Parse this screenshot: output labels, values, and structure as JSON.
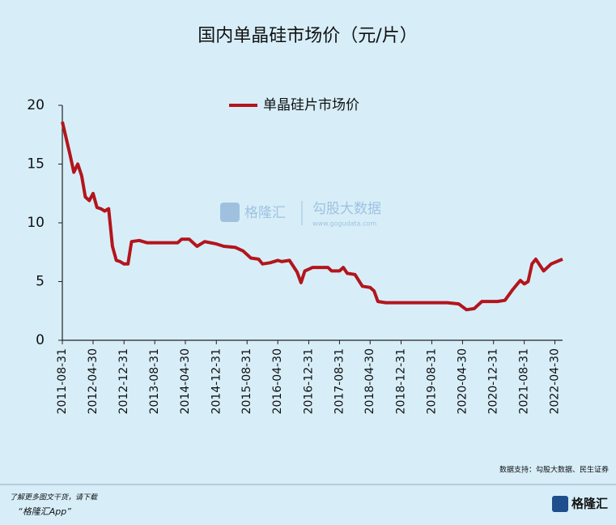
{
  "chart_data": {
    "type": "line",
    "title": "国内单晶硅市场价（元/片）",
    "x": [
      "2011-08-31",
      "2011-10-31",
      "2011-11-30",
      "2011-12-31",
      "2012-01-31",
      "2012-02-29",
      "2012-03-31",
      "2012-04-30",
      "2012-05-31",
      "2012-06-30",
      "2012-07-31",
      "2012-08-31",
      "2012-09-30",
      "2012-10-31",
      "2012-11-30",
      "2012-12-31",
      "2013-01-31",
      "2013-02-28",
      "2013-04-30",
      "2013-06-30",
      "2013-08-31",
      "2014-02-28",
      "2014-03-31",
      "2014-05-31",
      "2014-07-31",
      "2014-09-30",
      "2014-12-31",
      "2015-02-28",
      "2015-05-31",
      "2015-07-31",
      "2015-09-30",
      "2015-11-30",
      "2015-12-31",
      "2016-02-29",
      "2016-04-30",
      "2016-05-31",
      "2016-07-31",
      "2016-09-30",
      "2016-10-31",
      "2016-11-30",
      "2017-01-31",
      "2017-05-31",
      "2017-06-30",
      "2017-08-31",
      "2017-09-30",
      "2017-10-31",
      "2017-12-31",
      "2018-02-28",
      "2018-04-30",
      "2018-05-31",
      "2018-06-30",
      "2018-08-31",
      "2019-01-31",
      "2019-12-31",
      "2020-03-31",
      "2020-05-31",
      "2020-07-31",
      "2020-09-30",
      "2021-01-31",
      "2021-03-31",
      "2021-05-31",
      "2021-07-31",
      "2021-08-31",
      "2021-09-30",
      "2021-10-31",
      "2021-11-30",
      "2022-01-31",
      "2022-03-31",
      "2022-06-30"
    ],
    "series": [
      {
        "name": "单晶硅片市场价",
        "color": "#b3151c",
        "values": [
          18.6,
          15.8,
          14.3,
          15.0,
          14.0,
          12.2,
          11.9,
          12.5,
          11.3,
          11.2,
          11.0,
          11.2,
          8.0,
          6.8,
          6.7,
          6.5,
          6.5,
          8.4,
          8.5,
          8.3,
          8.3,
          8.3,
          8.6,
          8.6,
          8.0,
          8.4,
          8.2,
          8.0,
          7.9,
          7.6,
          7.0,
          6.9,
          6.5,
          6.6,
          6.8,
          6.7,
          6.8,
          5.8,
          4.9,
          5.9,
          6.2,
          6.2,
          5.9,
          5.9,
          6.2,
          5.7,
          5.6,
          4.6,
          4.5,
          4.2,
          3.3,
          3.2,
          3.2,
          3.2,
          3.1,
          2.6,
          2.7,
          3.3,
          3.3,
          3.4,
          4.3,
          5.1,
          4.8,
          5.0,
          6.5,
          6.9,
          5.9,
          6.5,
          6.9
        ]
      }
    ],
    "xlim": [
      "2011-08-31",
      "2022-06-30"
    ],
    "xticks": [
      "2011-08-31",
      "2012-04-30",
      "2012-12-31",
      "2013-08-31",
      "2014-04-30",
      "2014-12-31",
      "2015-08-31",
      "2016-04-30",
      "2016-12-31",
      "2017-08-31",
      "2018-04-30",
      "2018-12-31",
      "2019-08-31",
      "2020-04-30",
      "2020-12-31",
      "2021-08-31",
      "2022-04-30"
    ],
    "ylim": [
      0,
      20
    ],
    "yticks": [
      0,
      5,
      10,
      15,
      20
    ],
    "source": "数据支持：勾股大数据、民生证券"
  },
  "watermark": {
    "brand": "格隆汇",
    "partner": "勾股大数据",
    "url": "www.gogudata.com"
  },
  "footer": {
    "line1": "了解更多图文干货，请下载",
    "line2": "“格隆汇App”",
    "logo": "格隆汇"
  }
}
